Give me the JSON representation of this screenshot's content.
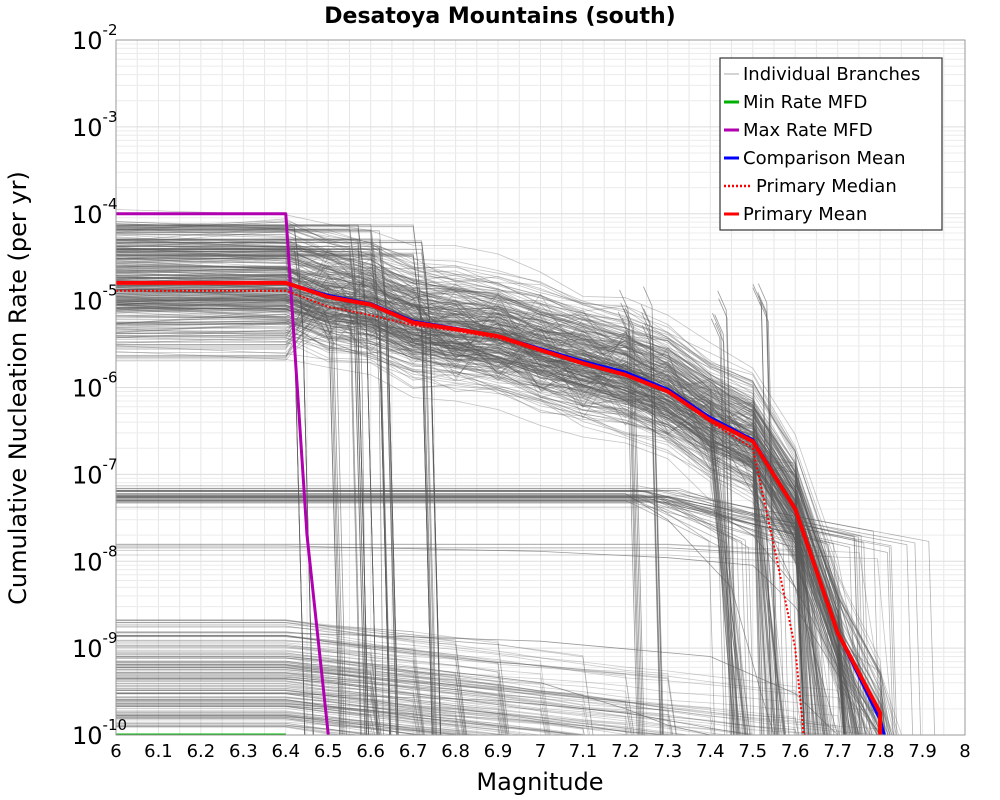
{
  "chart_data": {
    "type": "line",
    "title": "Desatoya Mountains (south)",
    "xlabel": "Magnitude",
    "ylabel": "Cumulative Nucleation Rate (per yr)",
    "xlim": [
      6,
      8
    ],
    "ylim": [
      1e-10,
      0.01
    ],
    "yscale": "log",
    "grid": true,
    "legend_position": "top-right",
    "x_ticks": [
      "6",
      "6.1",
      "6.2",
      "6.3",
      "6.4",
      "6.5",
      "6.6",
      "6.7",
      "6.8",
      "6.9",
      "7",
      "7.1",
      "7.2",
      "7.3",
      "7.4",
      "7.5",
      "7.6",
      "7.7",
      "7.8",
      "7.9",
      "8"
    ],
    "y_ticks": [
      {
        "base": "10",
        "exp": "-10"
      },
      {
        "base": "10",
        "exp": "-9"
      },
      {
        "base": "10",
        "exp": "-8"
      },
      {
        "base": "10",
        "exp": "-7"
      },
      {
        "base": "10",
        "exp": "-6"
      },
      {
        "base": "10",
        "exp": "-5"
      },
      {
        "base": "10",
        "exp": "-4"
      },
      {
        "base": "10",
        "exp": "-3"
      },
      {
        "base": "10",
        "exp": "-2"
      }
    ],
    "series": [
      {
        "name": "Individual Branches",
        "color": "#595959",
        "style": "thin",
        "note": "hundreds of logic-tree branch curves",
        "sample_branches": [
          {
            "x": [
              6.0,
              6.4,
              6.6,
              7.0,
              7.3,
              7.5,
              7.6,
              7.7,
              7.8
            ],
            "y": [
              4e-05,
              4e-05,
              1.4e-05,
              4e-06,
              1.2e-06,
              3e-07,
              8e-08,
              4e-09,
              1e-10
            ]
          },
          {
            "x": [
              6.0,
              6.4,
              6.5,
              6.9,
              7.2,
              7.4,
              7.5,
              7.6,
              7.7
            ],
            "y": [
              8e-06,
              8e-06,
              6e-06,
              3.5e-06,
              1.3e-06,
              4e-07,
              6e-08,
              5e-09,
              1e-10
            ]
          },
          {
            "x": [
              6.0,
              6.6,
              6.62,
              6.63
            ],
            "y": [
              6.5e-05,
              6.5e-05,
              1e-06,
              1e-10
            ]
          },
          {
            "x": [
              6.0,
              6.57,
              6.58,
              6.59
            ],
            "y": [
              5e-05,
              5e-05,
              1e-06,
              1e-10
            ]
          },
          {
            "x": [
              6.0,
              7.2,
              7.3,
              7.45,
              7.52,
              7.55
            ],
            "y": [
              6e-08,
              6e-08,
              3e-08,
              5e-09,
              3e-10,
              1e-10
            ]
          },
          {
            "x": [
              6.0,
              7.3,
              7.4,
              7.5,
              7.6,
              7.7,
              7.8
            ],
            "y": [
              5.5e-08,
              5.5e-08,
              4e-08,
              2e-08,
              5e-09,
              6e-10,
              1e-10
            ]
          },
          {
            "x": [
              6.0,
              6.4,
              6.7,
              7.0,
              7.2,
              7.3,
              7.4
            ],
            "y": [
              8e-10,
              8e-10,
              6e-10,
              4e-10,
              2e-10,
              1.3e-10,
              1e-10
            ]
          },
          {
            "x": [
              6.0,
              6.4,
              6.9,
              7.2,
              7.4,
              7.5
            ],
            "y": [
              3e-10,
              3e-10,
              2.5e-10,
              1.8e-10,
              1.2e-10,
              1e-10
            ]
          },
          {
            "x": [
              6.0,
              6.4,
              7.0,
              7.4,
              7.6,
              7.7
            ],
            "y": [
              1.5e-09,
              1.5e-09,
              1.2e-09,
              8e-10,
              3e-10,
              1e-10
            ]
          },
          {
            "x": [
              6.0,
              6.4,
              7.0,
              7.3,
              7.5,
              7.6,
              7.7,
              7.8
            ],
            "y": [
              1.5e-08,
              1.5e-08,
              1.3e-08,
              1.1e-08,
              9e-09,
              3e-09,
              5e-10,
              1e-10
            ]
          }
        ]
      },
      {
        "name": "Min Rate MFD",
        "color": "#00b000",
        "x": [
          6.0,
          6.2,
          6.4
        ],
        "y": [
          1e-10,
          1e-10,
          1e-10
        ]
      },
      {
        "name": "Max Rate MFD",
        "color": "#b000b0",
        "x": [
          6.0,
          6.4,
          6.45,
          6.5
        ],
        "y": [
          0.0001,
          0.0001,
          2e-08,
          1e-10
        ]
      },
      {
        "name": "Comparison Mean",
        "color": "#0000ff",
        "x": [
          6.0,
          6.4,
          6.5,
          6.6,
          6.7,
          6.8,
          6.9,
          7.0,
          7.1,
          7.2,
          7.3,
          7.4,
          7.5,
          7.6,
          7.7,
          7.8,
          7.81
        ],
        "y": [
          1.6e-05,
          1.6e-05,
          1.15e-05,
          9.2e-06,
          5.8e-06,
          4.8e-06,
          3.9e-06,
          2.8e-06,
          2e-06,
          1.5e-06,
          9.5e-07,
          4.5e-07,
          2.5e-07,
          4e-08,
          1.5e-09,
          1.5e-10,
          1e-10
        ]
      },
      {
        "name": "Primary Median",
        "color": "#ff0000",
        "style": "dotted",
        "x": [
          6.0,
          6.4,
          6.5,
          6.6,
          6.7,
          6.8,
          6.9,
          7.0,
          7.1,
          7.2,
          7.3,
          7.4,
          7.5,
          7.55,
          7.6,
          7.62,
          7.63
        ],
        "y": [
          1.3e-05,
          1.3e-05,
          8.5e-06,
          6.8e-06,
          5.2e-06,
          4.5e-06,
          3.7e-06,
          2.6e-06,
          1.9e-06,
          1.4e-06,
          9e-07,
          4e-07,
          2e-07,
          1.5e-08,
          1e-09,
          1e-10,
          1e-10
        ]
      },
      {
        "name": "Primary Mean",
        "color": "#ff0000",
        "x": [
          6.0,
          6.4,
          6.5,
          6.6,
          6.7,
          6.8,
          6.9,
          7.0,
          7.1,
          7.2,
          7.3,
          7.4,
          7.5,
          7.6,
          7.7,
          7.8,
          7.8
        ],
        "y": [
          1.6e-05,
          1.6e-05,
          1.1e-05,
          9e-06,
          5.6e-06,
          4.7e-06,
          3.9e-06,
          2.7e-06,
          1.9e-06,
          1.4e-06,
          9e-07,
          4.2e-07,
          2.4e-07,
          4e-08,
          1.5e-09,
          1.8e-10,
          1e-10
        ]
      }
    ]
  }
}
